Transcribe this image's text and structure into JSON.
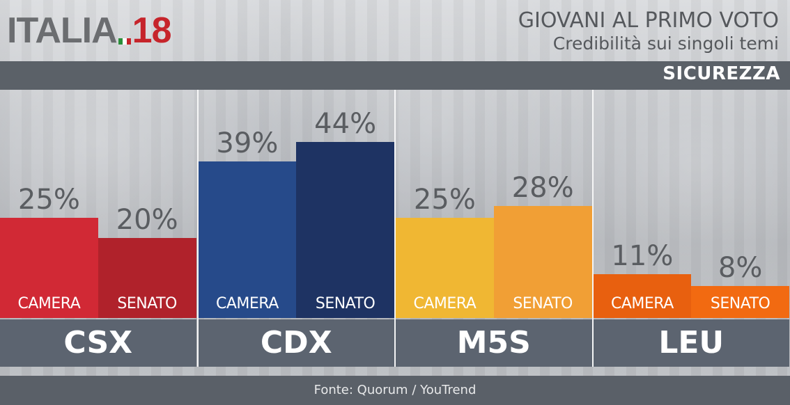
{
  "header": {
    "logo_text": "ITALIA",
    "logo_number": "18",
    "title": "GIOVANI AL PRIMO VOTO",
    "subtitle": "Credibilità sui singoli temi",
    "topic": "SICUREZZA"
  },
  "source": "Fonte: Quorum / YouTrend",
  "chart_data": {
    "type": "bar",
    "title": "GIOVANI AL PRIMO VOTO",
    "subtitle": "Credibilità sui singoli temi",
    "topic": "SICUREZZA",
    "categories": [
      "CSX",
      "CDX",
      "M5S",
      "LEU"
    ],
    "series": [
      {
        "name": "CAMERA",
        "values": [
          25,
          39,
          25,
          11
        ],
        "labels": [
          "25%",
          "39%",
          "25%",
          "11%"
        ],
        "colors": [
          "#d12935",
          "#264a8a",
          "#f0b733",
          "#e8600f"
        ]
      },
      {
        "name": "SENATO",
        "values": [
          20,
          44,
          28,
          8
        ],
        "labels": [
          "20%",
          "44%",
          "28%",
          "8%"
        ],
        "colors": [
          "#b0222b",
          "#1e3363",
          "#f19f35",
          "#f26a11"
        ]
      }
    ],
    "ylim": [
      0,
      50
    ],
    "legend": "none",
    "grid": false
  }
}
